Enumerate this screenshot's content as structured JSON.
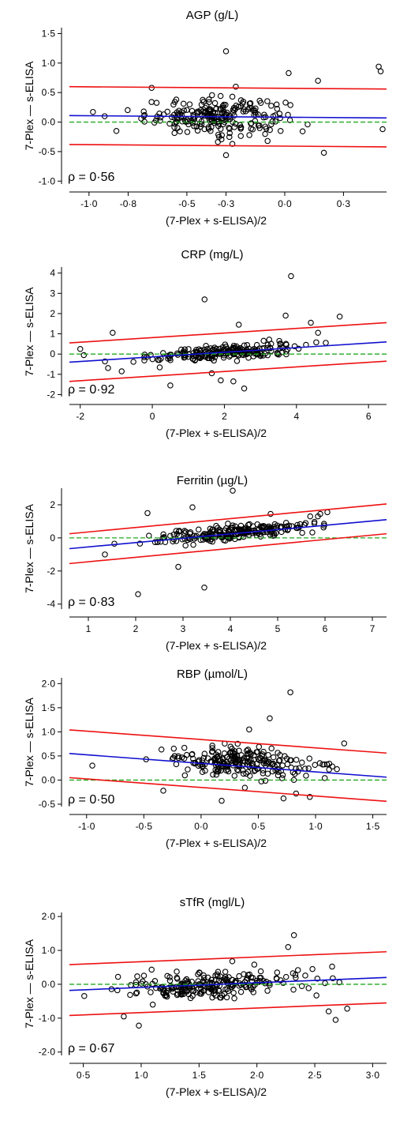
{
  "colors": {
    "zero_line": "#22aa22",
    "fit_line": "#1010d0",
    "limits": "#ee1111",
    "points": "#000000"
  },
  "chart_data": [
    {
      "type": "scatter",
      "title": "AGP (g/L)",
      "xlabel": "(7-Plex + s-ELISA)/2",
      "ylabel": "7-Plex — s-ELISA",
      "annotation": "ρ = 0·56",
      "xlim": [
        -1.1,
        0.52
      ],
      "ylim": [
        -1.05,
        1.6
      ],
      "xticks": [
        -1.0,
        -0.8,
        -0.5,
        -0.3,
        0.0,
        0.3
      ],
      "xtick_labels": [
        "-1·0",
        "-0·8",
        "-0·5",
        "-0·3",
        "0·0",
        "0·3"
      ],
      "yticks": [
        -1.0,
        -0.5,
        0.0,
        0.5,
        1.0,
        1.5
      ],
      "ytick_labels": [
        "-1·0",
        "-0·5",
        "0·0",
        "0·5",
        "1·0",
        "1·5"
      ],
      "zero_line": 0,
      "fit_line": [
        [
          -1.1,
          0.11
        ],
        [
          0.52,
          0.07
        ]
      ],
      "upper_limit": [
        [
          -1.1,
          0.6
        ],
        [
          0.52,
          0.56
        ]
      ],
      "lower_limit": [
        [
          -1.1,
          -0.38
        ],
        [
          0.52,
          -0.42
        ]
      ],
      "n_points": 230,
      "x_center": -0.35,
      "x_spread": 0.18,
      "y_center": 0.08,
      "y_spread": 0.17,
      "outliers": [
        [
          -0.3,
          1.2
        ],
        [
          0.48,
          0.94
        ],
        [
          0.49,
          0.86
        ],
        [
          0.02,
          0.83
        ],
        [
          0.17,
          0.7
        ],
        [
          -0.68,
          0.58
        ],
        [
          -0.25,
          0.6
        ],
        [
          -0.3,
          -0.56
        ],
        [
          0.2,
          -0.52
        ],
        [
          0.5,
          -0.12
        ],
        [
          -0.92,
          0.1
        ],
        [
          -0.86,
          -0.15
        ]
      ]
    },
    {
      "type": "scatter",
      "title": "CRP (mg/L)",
      "xlabel": "(7-Plex + s-ELISA)/2",
      "ylabel": "7-Plex — s-ELISA",
      "annotation": "ρ = 0·92",
      "xlim": [
        -2.3,
        6.5
      ],
      "ylim": [
        -2.1,
        4.3
      ],
      "xticks": [
        -2,
        0,
        2,
        4,
        6
      ],
      "xtick_labels": [
        "-2",
        "0",
        "2",
        "4",
        "6"
      ],
      "yticks": [
        -2,
        -1,
        0,
        1,
        2,
        3,
        4
      ],
      "ytick_labels": [
        "-2",
        "-1",
        "0",
        "1",
        "2",
        "3",
        "4"
      ],
      "zero_line": 0,
      "fit_line": [
        [
          -2.3,
          -0.4
        ],
        [
          6.5,
          0.6
        ]
      ],
      "upper_limit": [
        [
          -2.3,
          0.55
        ],
        [
          6.5,
          1.55
        ]
      ],
      "lower_limit": [
        [
          -2.3,
          -1.35
        ],
        [
          6.5,
          -0.35
        ]
      ],
      "n_points": 220,
      "x_center": 2.0,
      "x_spread": 1.0,
      "y_center": 0.05,
      "y_spread": 0.2,
      "outliers": [
        [
          3.85,
          3.85
        ],
        [
          1.45,
          2.7
        ],
        [
          3.7,
          1.9
        ],
        [
          5.2,
          1.85
        ],
        [
          4.4,
          1.55
        ],
        [
          2.4,
          1.45
        ],
        [
          4.6,
          1.05
        ],
        [
          -1.1,
          1.05
        ],
        [
          0.5,
          -1.55
        ],
        [
          2.55,
          -1.7
        ],
        [
          1.65,
          -0.95
        ],
        [
          1.9,
          -1.3
        ],
        [
          2.25,
          -1.35
        ],
        [
          -0.85,
          -0.85
        ],
        [
          -2.0,
          0.25
        ],
        [
          -1.9,
          -0.05
        ]
      ]
    },
    {
      "type": "scatter",
      "title": "Ferritin (µg/L)",
      "xlabel": "(7-Plex + s-ELISA)/2",
      "ylabel": "7-Plex — s-ELISA",
      "annotation": "ρ = 0·83",
      "xlim": [
        0.6,
        7.3
      ],
      "ylim": [
        -4.3,
        3.0
      ],
      "xticks": [
        1,
        2,
        3,
        4,
        5,
        6,
        7
      ],
      "xtick_labels": [
        "1",
        "2",
        "3",
        "4",
        "5",
        "6",
        "7"
      ],
      "yticks": [
        -4,
        -2,
        0,
        2
      ],
      "ytick_labels": [
        "-4",
        "-2",
        "0",
        "2"
      ],
      "zero_line": 0,
      "fit_line": [
        [
          0.6,
          -0.65
        ],
        [
          7.3,
          1.1
        ]
      ],
      "upper_limit": [
        [
          0.6,
          0.25
        ],
        [
          7.3,
          2.05
        ]
      ],
      "lower_limit": [
        [
          0.6,
          -1.55
        ],
        [
          7.3,
          0.25
        ]
      ],
      "n_points": 230,
      "x_center": 4.1,
      "x_spread": 0.85,
      "y_center": 0.2,
      "y_spread": 0.25,
      "outliers": [
        [
          4.05,
          2.85
        ],
        [
          3.2,
          1.85
        ],
        [
          2.25,
          1.5
        ],
        [
          4.85,
          1.45
        ],
        [
          5.9,
          1.45
        ],
        [
          6.05,
          1.55
        ],
        [
          5.85,
          1.3
        ],
        [
          1.35,
          -1.0
        ],
        [
          2.9,
          -1.75
        ],
        [
          2.05,
          -3.4
        ],
        [
          3.45,
          -3.0
        ],
        [
          1.55,
          -0.35
        ]
      ]
    },
    {
      "type": "scatter",
      "title": "RBP (µmol/L)",
      "xlabel": "(7-Plex + s-ELISA)/2",
      "ylabel": "7-Plex — s-ELISA",
      "annotation": "ρ = 0·50",
      "xlim": [
        -1.15,
        1.62
      ],
      "ylim": [
        -0.55,
        2.12
      ],
      "xticks": [
        -1.0,
        -0.5,
        0.0,
        0.5,
        1.0,
        1.5
      ],
      "xtick_labels": [
        "-1·0",
        "-0·5",
        "0·0",
        "0·5",
        "1·0",
        "1·5"
      ],
      "yticks": [
        -0.5,
        0.0,
        0.5,
        1.0,
        1.5,
        2.0
      ],
      "ytick_labels": [
        "-0·5",
        "0·0",
        "0·5",
        "1·0",
        "1·5",
        "2·0"
      ],
      "zero_line": 0,
      "fit_line": [
        [
          -1.15,
          0.55
        ],
        [
          1.62,
          0.06
        ]
      ],
      "upper_limit": [
        [
          -1.15,
          1.04
        ],
        [
          1.62,
          0.56
        ]
      ],
      "lower_limit": [
        [
          -1.15,
          0.05
        ],
        [
          1.62,
          -0.44
        ]
      ],
      "n_points": 230,
      "x_center": 0.35,
      "x_spread": 0.3,
      "y_center": 0.3,
      "y_spread": 0.17,
      "outliers": [
        [
          0.78,
          1.82
        ],
        [
          0.6,
          1.28
        ],
        [
          0.42,
          1.05
        ],
        [
          1.25,
          0.76
        ],
        [
          -0.95,
          0.3
        ],
        [
          -0.48,
          0.43
        ],
        [
          -0.33,
          -0.22
        ],
        [
          0.18,
          -0.43
        ],
        [
          0.72,
          -0.38
        ],
        [
          0.95,
          -0.35
        ],
        [
          0.83,
          -0.28
        ]
      ]
    },
    {
      "type": "scatter",
      "title": "sTfR (mgl/L)",
      "xlabel": "(7-Plex + s-ELISA)/2",
      "ylabel": "7-Plex — s-ELISA",
      "annotation": "ρ = 0·67",
      "xlim": [
        0.38,
        3.12
      ],
      "ylim": [
        -2.1,
        2.12
      ],
      "xticks": [
        0.5,
        1.0,
        1.5,
        2.0,
        2.5,
        3.0
      ],
      "xtick_labels": [
        "0·5",
        "1·0",
        "1·5",
        "2·0",
        "2·5",
        "3·0"
      ],
      "yticks": [
        -2.0,
        -1.0,
        0.0,
        1.0,
        2.0
      ],
      "ytick_labels": [
        "-2·0",
        "-1·0",
        "0·0",
        "1·0",
        "2·0"
      ],
      "zero_line": 0,
      "fit_line": [
        [
          0.38,
          -0.18
        ],
        [
          3.12,
          0.2
        ]
      ],
      "upper_limit": [
        [
          0.38,
          0.58
        ],
        [
          3.12,
          0.96
        ]
      ],
      "lower_limit": [
        [
          0.38,
          -0.92
        ],
        [
          3.12,
          -0.55
        ]
      ],
      "n_points": 230,
      "x_center": 1.6,
      "x_spread": 0.38,
      "y_center": 0.05,
      "y_spread": 0.23,
      "outliers": [
        [
          2.32,
          1.45
        ],
        [
          2.27,
          1.1
        ],
        [
          0.98,
          -1.22
        ],
        [
          0.85,
          -0.95
        ],
        [
          2.68,
          -1.05
        ],
        [
          2.78,
          -0.72
        ],
        [
          2.62,
          -0.8
        ],
        [
          2.48,
          0.45
        ],
        [
          0.8,
          0.22
        ],
        [
          1.1,
          -0.6
        ]
      ]
    }
  ]
}
